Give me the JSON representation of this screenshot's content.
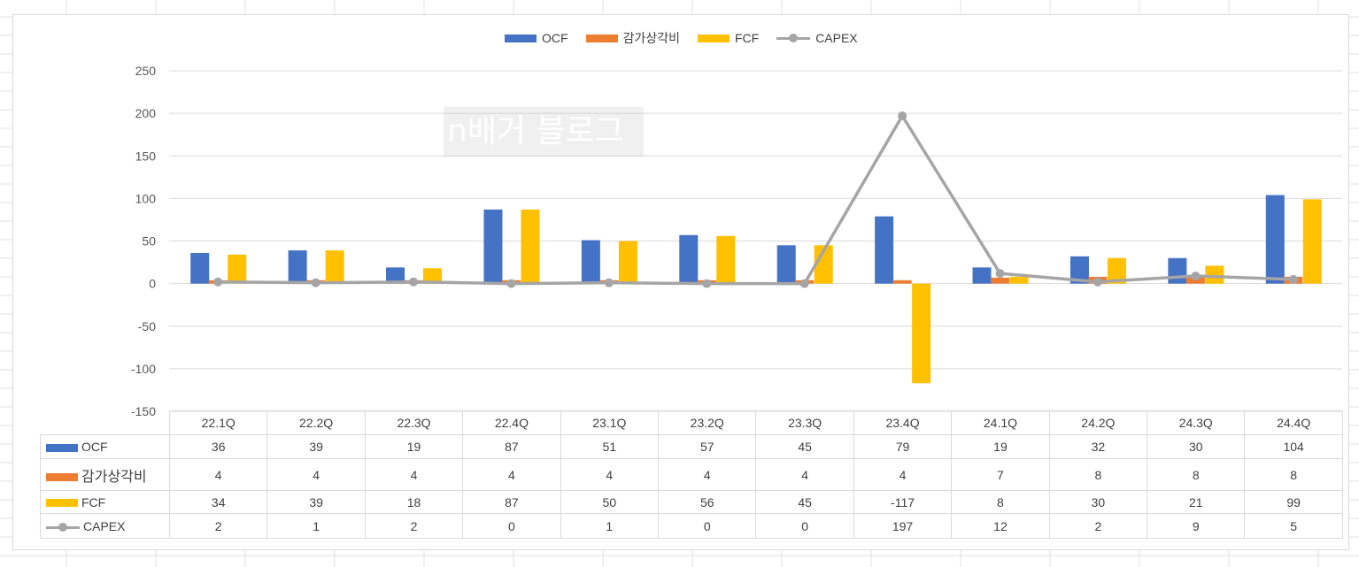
{
  "chart_data": {
    "type": "bar",
    "title": "",
    "xlabel": "",
    "ylabel": "",
    "categories": [
      "22.1Q",
      "22.2Q",
      "22.3Q",
      "22.4Q",
      "23.1Q",
      "23.2Q",
      "23.3Q",
      "23.4Q",
      "24.1Q",
      "24.2Q",
      "24.3Q",
      "24.4Q"
    ],
    "yticks": [
      250,
      200,
      150,
      100,
      50,
      0,
      -50,
      -100,
      -150
    ],
    "ylim": [
      -150,
      250
    ],
    "grid": true,
    "legend_position": "top",
    "data_table": true,
    "series": [
      {
        "name": "OCF",
        "type": "bar",
        "color": "#4472c4",
        "values": [
          36,
          39,
          19,
          87,
          51,
          57,
          45,
          79,
          19,
          32,
          30,
          104
        ]
      },
      {
        "name": "감가상각비",
        "type": "bar",
        "color": "#ed7d31",
        "values": [
          4,
          4,
          4,
          4,
          4,
          4,
          4,
          4,
          7,
          8,
          8,
          8
        ]
      },
      {
        "name": "FCF",
        "type": "bar",
        "color": "#ffc000",
        "values": [
          34,
          39,
          18,
          87,
          50,
          56,
          45,
          -117,
          8,
          30,
          21,
          99
        ]
      },
      {
        "name": "CAPEX",
        "type": "line",
        "color": "#a5a5a5",
        "values": [
          2,
          1,
          2,
          0,
          1,
          0,
          0,
          197,
          12,
          2,
          9,
          5
        ]
      }
    ]
  },
  "watermark": {
    "text": "n배거 블로그"
  }
}
